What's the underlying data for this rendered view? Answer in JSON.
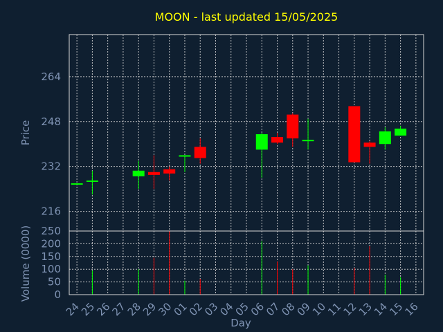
{
  "chart_data": {
    "type": "candlestick",
    "title": "MOON - last updated 15/05/2025",
    "xlabel": "Day",
    "price_ylabel": "Price",
    "volume_ylabel": "Volume (0000)",
    "x_ticks": [
      "24",
      "25",
      "26",
      "27",
      "28",
      "29",
      "30",
      "01",
      "02",
      "03",
      "04",
      "05",
      "06",
      "07",
      "08",
      "09",
      "10",
      "11",
      "12",
      "13",
      "14",
      "15",
      "16"
    ],
    "price_yticks": [
      216,
      232,
      248,
      264
    ],
    "price_ylim": [
      209,
      279
    ],
    "volume_yticks": [
      0,
      50,
      100,
      150,
      200,
      250
    ],
    "volume_ylim": [
      0,
      250
    ],
    "grid": true,
    "colors": {
      "up": "#00ff00",
      "down": "#ff0000",
      "background": "#0f1f30"
    },
    "candles": [
      {
        "day": "24",
        "open": 226,
        "high": 226,
        "low": 226,
        "close": 226,
        "volume": 0
      },
      {
        "day": "25",
        "open": 226.5,
        "high": 230.5,
        "low": 222,
        "close": 227,
        "volume": 95
      },
      {
        "day": "28",
        "open": 228.5,
        "high": 234,
        "low": 224,
        "close": 230.5,
        "volume": 100
      },
      {
        "day": "29",
        "open": 230,
        "high": 236,
        "low": 224,
        "close": 229,
        "volume": 145
      },
      {
        "day": "30",
        "open": 231,
        "high": 232,
        "low": 227,
        "close": 229.5,
        "volume": 250
      },
      {
        "day": "01",
        "open": 235.5,
        "high": 236,
        "low": 230,
        "close": 236,
        "volume": 55
      },
      {
        "day": "02",
        "open": 239,
        "high": 242,
        "low": 233,
        "close": 235,
        "volume": 62
      },
      {
        "day": "06",
        "open": 238,
        "high": 244,
        "low": 228,
        "close": 243.5,
        "volume": 210
      },
      {
        "day": "07",
        "open": 242.5,
        "high": 244,
        "low": 240,
        "close": 240.5,
        "volume": 130
      },
      {
        "day": "08",
        "open": 250.5,
        "high": 251,
        "low": 239,
        "close": 242,
        "volume": 100
      },
      {
        "day": "09",
        "open": 241,
        "high": 249,
        "low": 238,
        "close": 241.5,
        "volume": 115
      },
      {
        "day": "12",
        "open": 253.5,
        "high": 253.5,
        "low": 233.5,
        "close": 233.5,
        "volume": 105
      },
      {
        "day": "13",
        "open": 240.5,
        "high": 241,
        "low": 233,
        "close": 239,
        "volume": 190
      },
      {
        "day": "14",
        "open": 240,
        "high": 246,
        "low": 238,
        "close": 244.5,
        "volume": 78
      },
      {
        "day": "15",
        "open": 243,
        "high": 246.5,
        "low": 243,
        "close": 245.5,
        "volume": 68
      }
    ]
  }
}
